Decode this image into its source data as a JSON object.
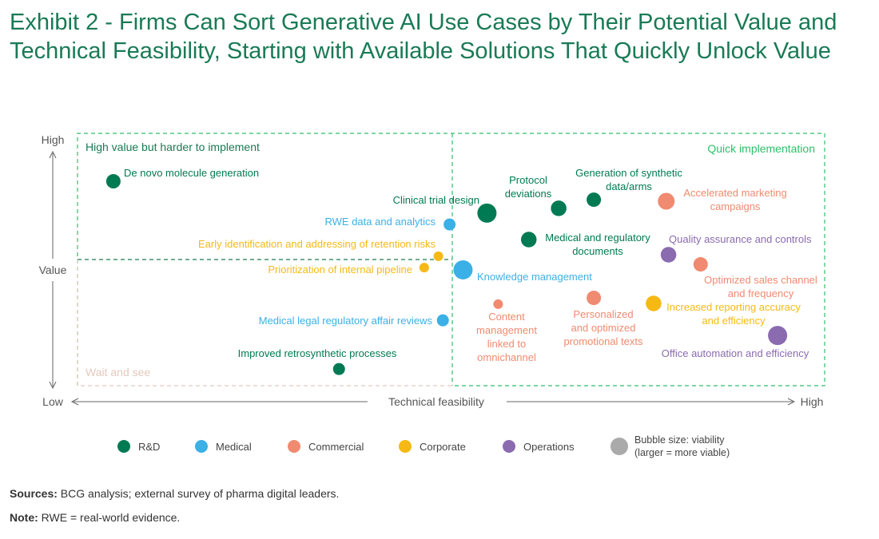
{
  "chart_data": {
    "type": "scatter",
    "title": "Exhibit 2 - Firms Can Sort Generative AI Use Cases by Their Potential Value and Technical Feasibility, Starting with Available Solutions That Quickly Unlock Value",
    "xlabel": "Technical feasibility",
    "ylabel": "Value",
    "x_low": "Low",
    "x_high": "High",
    "y_low": "Low",
    "y_high": "High",
    "xlim": [
      0,
      100
    ],
    "ylim": [
      0,
      100
    ],
    "quadrants": {
      "top_left": "High value but harder to implement",
      "right": "Quick implementation",
      "bottom_left": "Wait and see"
    },
    "categories": [
      {
        "name": "R&D",
        "color": "#007a53"
      },
      {
        "name": "Medical",
        "color": "#3bb0e6"
      },
      {
        "name": "Commercial",
        "color": "#f08a70"
      },
      {
        "name": "Corporate",
        "color": "#f6b913"
      },
      {
        "name": "Operations",
        "color": "#8a6bb0"
      }
    ],
    "size_legend": [
      "Bubble size: viability",
      "(larger = more viable)"
    ],
    "size_legend_color": "#aaaaaa",
    "points": [
      {
        "label": [
          "De novo molecule generation"
        ],
        "category": "R&D",
        "feasibility": 4.8,
        "value": 81,
        "viability": 3
      },
      {
        "label": [
          "Clinical trial design"
        ],
        "category": "R&D",
        "feasibility": 54.8,
        "value": 68.4,
        "viability": 5
      },
      {
        "label": [
          "Protocol",
          "deviations"
        ],
        "category": "R&D",
        "feasibility": 64.4,
        "value": 70.3,
        "viability": 3.5
      },
      {
        "label": [
          "Generation of synthetic",
          "data/arms"
        ],
        "category": "R&D",
        "feasibility": 69.1,
        "value": 73.7,
        "viability": 3
      },
      {
        "label": [
          "Accelerated marketing",
          "campaigns"
        ],
        "category": "Commercial",
        "feasibility": 78.8,
        "value": 73.1,
        "viability": 4
      },
      {
        "label": [
          "RWE data and analytics"
        ],
        "category": "Medical",
        "feasibility": 49.8,
        "value": 63.9,
        "viability": 2
      },
      {
        "label": [
          "Medical and regulatory",
          "documents"
        ],
        "category": "R&D",
        "feasibility": 60.4,
        "value": 57.9,
        "viability": 3.5
      },
      {
        "label": [
          "Quality assurance and controls"
        ],
        "category": "Operations",
        "feasibility": 79.1,
        "value": 51.9,
        "viability": 3.5
      },
      {
        "label": [
          "Early identification and addressing of retention risks"
        ],
        "category": "Corporate",
        "feasibility": 48.3,
        "value": 51.3,
        "viability": 1
      },
      {
        "label": [
          "Optimized sales channel",
          "and frequency"
        ],
        "category": "Commercial",
        "feasibility": 83.4,
        "value": 48.1,
        "viability": 3
      },
      {
        "label": [
          "Prioritization of internal pipeline"
        ],
        "category": "Corporate",
        "feasibility": 46.4,
        "value": 46.8,
        "viability": 1
      },
      {
        "label": [
          "Knowledge management"
        ],
        "category": "Medical",
        "feasibility": 51.6,
        "value": 45.9,
        "viability": 5
      },
      {
        "label": [
          "Content",
          "management",
          "linked to",
          "omnichannel"
        ],
        "category": "Commercial",
        "feasibility": 56.3,
        "value": 32.3,
        "viability": 1
      },
      {
        "label": [
          "Personalized",
          "and optimized",
          "promotional texts"
        ],
        "category": "Commercial",
        "feasibility": 69.1,
        "value": 34.8,
        "viability": 3
      },
      {
        "label": [
          "Increased reporting accuracy",
          "and efficiency"
        ],
        "category": "Corporate",
        "feasibility": 77.1,
        "value": 32.6,
        "viability": 3.5
      },
      {
        "label": [
          "Medical legal regulatory affair reviews"
        ],
        "category": "Medical",
        "feasibility": 48.9,
        "value": 25.9,
        "viability": 2
      },
      {
        "label": [
          "Office automation and efficiency"
        ],
        "category": "Operations",
        "feasibility": 93.7,
        "value": 19.9,
        "viability": 5
      },
      {
        "label": [
          "Improved retrosynthetic processes"
        ],
        "category": "R&D",
        "feasibility": 35,
        "value": 6.6,
        "viability": 2
      }
    ]
  },
  "notes": {
    "sources_label": "Sources:",
    "sources_text": " BCG analysis; external survey of pharma digital leaders.",
    "note_label": "Note:",
    "note_text": " RWE = real-world evidence."
  }
}
